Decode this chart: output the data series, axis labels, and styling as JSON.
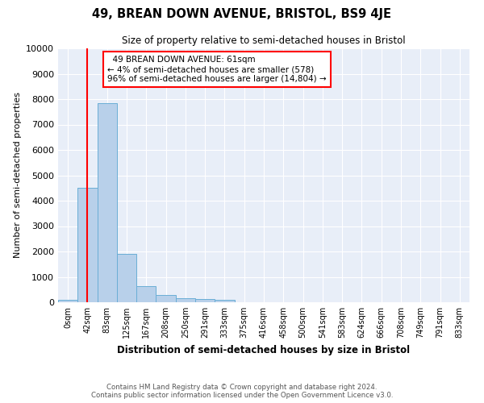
{
  "title": "49, BREAN DOWN AVENUE, BRISTOL, BS9 4JE",
  "subtitle": "Size of property relative to semi-detached houses in Bristol",
  "xlabel": "Distribution of semi-detached houses by size in Bristol",
  "ylabel": "Number of semi-detached properties",
  "footer_line1": "Contains HM Land Registry data © Crown copyright and database right 2024.",
  "footer_line2": "Contains public sector information licensed under the Open Government Licence v3.0.",
  "annotation_line1": "  49 BREAN DOWN AVENUE: 61sqm",
  "annotation_line2": "← 4% of semi-detached houses are smaller (578)",
  "annotation_line3": "96% of semi-detached houses are larger (14,804) →",
  "bar_labels": [
    "0sqm",
    "42sqm",
    "83sqm",
    "125sqm",
    "167sqm",
    "208sqm",
    "250sqm",
    "291sqm",
    "333sqm",
    "375sqm",
    "416sqm",
    "458sqm",
    "500sqm",
    "541sqm",
    "583sqm",
    "624sqm",
    "666sqm",
    "708sqm",
    "749sqm",
    "791sqm",
    "833sqm"
  ],
  "bar_heights": [
    100,
    4500,
    7850,
    1900,
    650,
    300,
    150,
    120,
    100,
    0,
    0,
    0,
    0,
    0,
    0,
    0,
    0,
    0,
    0,
    0,
    0
  ],
  "bar_color": "#b8d0ea",
  "bar_edge_color": "#6aaed6",
  "property_line_x": 1.47,
  "ylim": [
    0,
    10000
  ],
  "yticks": [
    0,
    1000,
    2000,
    3000,
    4000,
    5000,
    6000,
    7000,
    8000,
    9000,
    10000
  ],
  "background_color": "#e8eef8"
}
